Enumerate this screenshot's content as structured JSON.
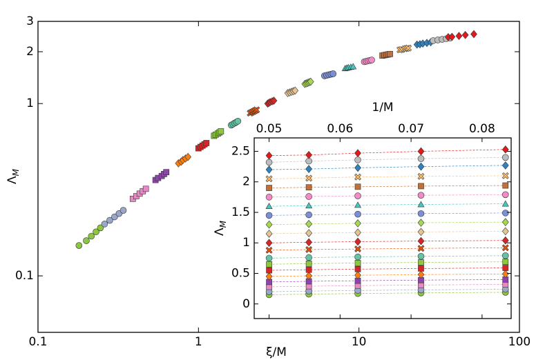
{
  "chart_data": {
    "type": "scatter",
    "xlabel": "ξ/M",
    "ylabel": [
      "Λ",
      "M"
    ],
    "log_x": true,
    "log_y": true,
    "xlim": [
      0.1,
      100
    ],
    "ylim": [
      0.047,
      3
    ],
    "xticks": [
      0.1,
      1,
      10,
      100
    ],
    "yticks": [
      0.1,
      1,
      2,
      3
    ],
    "series": [
      {
        "color": "#8dc63f",
        "marker": "o",
        "values": [
          0.15,
          0.16,
          0.17,
          0.18,
          0.19
        ],
        "x": [
          0.18,
          0.2,
          0.215,
          0.23,
          0.245
        ]
      },
      {
        "color": "#9aa7c9",
        "marker": "o",
        "values": [
          0.2,
          0.21,
          0.22,
          0.23,
          0.24
        ],
        "x": [
          0.26,
          0.28,
          0.3,
          0.32,
          0.34
        ]
      },
      {
        "color": "#e78ac3",
        "marker": "s",
        "values": [
          0.28,
          0.29,
          0.3,
          0.31,
          0.32
        ],
        "x": [
          0.39,
          0.41,
          0.43,
          0.45,
          0.47
        ]
      },
      {
        "color": "#8e44ad",
        "marker": "s",
        "values": [
          0.36,
          0.37,
          0.38,
          0.39,
          0.4
        ],
        "x": [
          0.54,
          0.56,
          0.59,
          0.61,
          0.63
        ]
      },
      {
        "color": "#ff7f0e",
        "marker": "D",
        "values": [
          0.45,
          0.46,
          0.47,
          0.48,
          0.49
        ],
        "x": [
          0.75,
          0.78,
          0.8,
          0.83,
          0.86
        ]
      },
      {
        "color": "#d62728",
        "marker": "s",
        "values": [
          0.55,
          0.56,
          0.57,
          0.58,
          0.59
        ],
        "x": [
          1.0,
          1.03,
          1.06,
          1.09,
          1.12
        ]
      },
      {
        "color": "#8dc63f",
        "marker": "s",
        "values": [
          0.65,
          0.66,
          0.67,
          0.68,
          0.69
        ],
        "x": [
          1.25,
          1.28,
          1.32,
          1.35,
          1.38
        ]
      },
      {
        "color": "#66c2a5",
        "marker": "o",
        "values": [
          0.75,
          0.76,
          0.77,
          0.78,
          0.79
        ],
        "x": [
          1.6,
          1.64,
          1.68,
          1.72,
          1.76
        ]
      },
      {
        "color": "#e6550d",
        "marker": "x",
        "values": [
          0.88,
          0.89,
          0.9,
          0.91,
          0.92
        ],
        "x": [
          2.1,
          2.15,
          2.2,
          2.25,
          2.3
        ]
      },
      {
        "color": "#d62728",
        "marker": "D",
        "values": [
          1.0,
          1.01,
          1.02,
          1.03,
          1.04
        ],
        "x": [
          2.7,
          2.75,
          2.8,
          2.88,
          2.95
        ]
      },
      {
        "color": "#e5c494",
        "marker": "D",
        "values": [
          1.15,
          1.16,
          1.17,
          1.18,
          1.19
        ],
        "x": [
          3.6,
          3.7,
          3.8,
          3.9,
          4.0
        ]
      },
      {
        "color": "#a6d854",
        "marker": "D",
        "values": [
          1.3,
          1.31,
          1.32,
          1.33,
          1.34
        ],
        "x": [
          4.6,
          4.7,
          4.8,
          4.9,
          5.0
        ]
      },
      {
        "color": "#7b8fd6",
        "marker": "o",
        "values": [
          1.45,
          1.46,
          1.47,
          1.48,
          1.49
        ],
        "x": [
          6.1,
          6.3,
          6.5,
          6.7,
          6.9
        ]
      },
      {
        "color": "#4ac6c0",
        "marker": "^",
        "values": [
          1.6,
          1.61,
          1.62,
          1.63,
          1.64
        ],
        "x": [
          8.2,
          8.4,
          8.6,
          8.9,
          9.2
        ]
      },
      {
        "color": "#f38cc6",
        "marker": "o",
        "values": [
          1.75,
          1.76,
          1.77,
          1.78,
          1.79
        ],
        "x": [
          10.8,
          11.1,
          11.4,
          11.7,
          12.0
        ]
      },
      {
        "color": "#c0703a",
        "marker": "s",
        "values": [
          1.9,
          1.91,
          1.92,
          1.93,
          1.94
        ],
        "x": [
          14,
          14.4,
          14.8,
          15.2,
          15.6
        ]
      },
      {
        "color": "#fdbf6f",
        "marker": "x",
        "values": [
          2.05,
          2.06,
          2.08,
          2.09,
          2.1
        ],
        "x": [
          18,
          18.5,
          19.3,
          19.8,
          20.3
        ]
      },
      {
        "color": "#3182bd",
        "marker": "D",
        "values": [
          2.2,
          2.21,
          2.23,
          2.25,
          2.27
        ],
        "x": [
          23,
          24,
          25,
          26.5,
          28
        ]
      },
      {
        "color": "#bdbdbd",
        "marker": "o",
        "values": [
          2.32,
          2.34,
          2.36,
          2.38,
          2.4
        ],
        "x": [
          29,
          31,
          33,
          35,
          37
        ]
      },
      {
        "color": "#e31a1c",
        "marker": "D",
        "values": [
          2.43,
          2.44,
          2.47,
          2.5,
          2.53
        ],
        "x": [
          36,
          38,
          42,
          46,
          52
        ]
      }
    ],
    "inset": {
      "type": "scatter",
      "xlabel": "1/M",
      "ylabel": [
        "Λ",
        "M"
      ],
      "x": [
        0.05,
        0.0556,
        0.0625,
        0.0714,
        0.0833
      ],
      "xlim": [
        0.0479,
        0.0841
      ],
      "ylim": [
        -0.24,
        2.72
      ],
      "xticks": [
        0.05,
        0.06,
        0.07,
        0.08
      ],
      "yticks": [
        0,
        0.5,
        1,
        1.5,
        2,
        2.5
      ],
      "dashed_lines": true
    }
  }
}
